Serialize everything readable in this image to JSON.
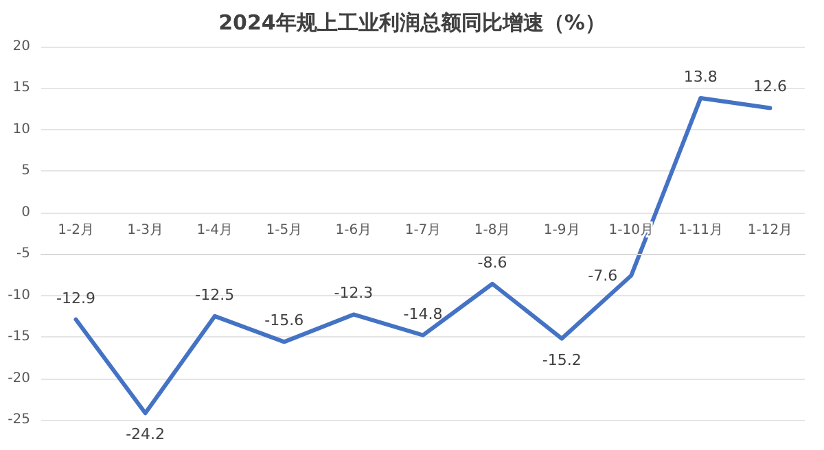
{
  "chart_data": {
    "type": "line",
    "title": "2024年规上工业利润总额同比增速（%）",
    "categories": [
      "1-2月",
      "1-3月",
      "1-4月",
      "1-5月",
      "1-6月",
      "1-7月",
      "1-8月",
      "1-9月",
      "1-10月",
      "1-11月",
      "1-12月"
    ],
    "series": [
      {
        "color": "#4472c4",
        "values": [
          -12.9,
          -24.2,
          -12.5,
          -15.6,
          -12.3,
          -14.8,
          -8.6,
          -15.2,
          -7.6,
          13.8,
          12.6
        ]
      }
    ],
    "ylim": [
      -25,
      20
    ],
    "yticks": [
      -25,
      -20,
      -15,
      -10,
      -5,
      0,
      5,
      10,
      15,
      20
    ],
    "grid": "y",
    "data_labels": true,
    "marker": "none",
    "line_style": "solid"
  }
}
